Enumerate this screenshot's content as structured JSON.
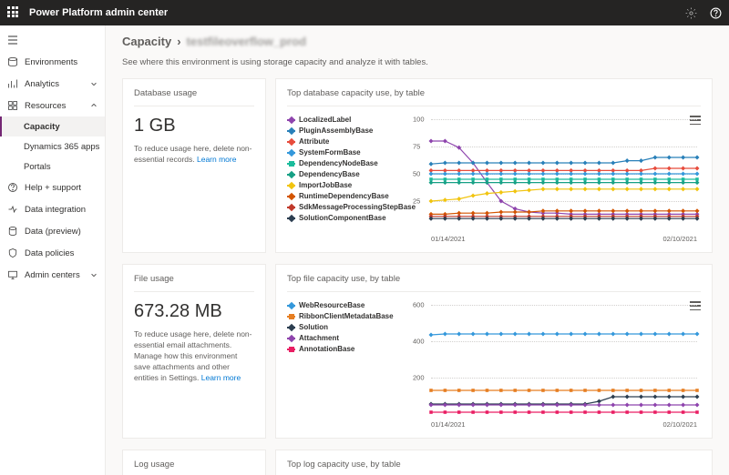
{
  "topbar": {
    "title": "Power Platform admin center"
  },
  "nav": {
    "environments": "Environments",
    "analytics": "Analytics",
    "resources": "Resources",
    "capacity": "Capacity",
    "d365": "Dynamics 365 apps",
    "portals": "Portals",
    "help": "Help + support",
    "dataint": "Data integration",
    "dataprev": "Data (preview)",
    "datapol": "Data policies",
    "admin": "Admin centers"
  },
  "breadcrumb": {
    "root": "Capacity",
    "env": "testfileoverflow_prod"
  },
  "description": "See where this environment is using storage capacity and analyze it with tables.",
  "learn_more": "Learn more",
  "db": {
    "title": "Database usage",
    "value": "1 GB",
    "hint": "To reduce usage here, delete non-essential records."
  },
  "db_chart": {
    "title": "Top database capacity use, by table",
    "ymax": 100,
    "yticks": [
      100,
      75,
      50,
      25
    ],
    "xlabels": [
      "01/14/2021",
      "02/10/2021"
    ],
    "series": [
      {
        "name": "LocalizedLabel",
        "color": "#8e44ad",
        "shape": "diamond",
        "data": [
          80,
          80,
          74,
          60,
          42,
          25,
          18,
          15,
          14,
          14,
          13,
          13,
          13,
          13,
          13,
          13,
          13,
          13,
          13,
          13
        ]
      },
      {
        "name": "PluginAssemblyBase",
        "color": "#2980b9",
        "shape": "diamond",
        "data": [
          59,
          60,
          60,
          60,
          60,
          60,
          60,
          60,
          60,
          60,
          60,
          60,
          60,
          60,
          62,
          62,
          65,
          65,
          65,
          65
        ]
      },
      {
        "name": "Attribute",
        "color": "#e74c3c",
        "shape": "diamond",
        "data": [
          53,
          53,
          53,
          53,
          53,
          53,
          53,
          53,
          53,
          53,
          53,
          53,
          53,
          53,
          53,
          53,
          55,
          55,
          55,
          55
        ]
      },
      {
        "name": "SystemFormBase",
        "color": "#3498db",
        "shape": "diamond",
        "data": [
          50,
          50,
          50,
          50,
          50,
          50,
          50,
          50,
          50,
          50,
          50,
          50,
          50,
          50,
          50,
          50,
          50,
          50,
          50,
          50
        ]
      },
      {
        "name": "DependencyNodeBase",
        "color": "#1abc9c",
        "shape": "square",
        "data": [
          45,
          45,
          45,
          45,
          45,
          45,
          45,
          45,
          45,
          45,
          45,
          45,
          45,
          45,
          45,
          45,
          45,
          45,
          45,
          45
        ]
      },
      {
        "name": "DependencyBase",
        "color": "#16a085",
        "shape": "diamond",
        "data": [
          42,
          42,
          42,
          42,
          42,
          42,
          42,
          42,
          42,
          42,
          42,
          42,
          42,
          42,
          42,
          42,
          42,
          42,
          42,
          42
        ]
      },
      {
        "name": "ImportJobBase",
        "color": "#f1c40f",
        "shape": "diamond",
        "data": [
          25,
          26,
          27,
          30,
          32,
          33,
          34,
          35,
          36,
          36,
          36,
          36,
          36,
          36,
          36,
          36,
          36,
          36,
          36,
          36
        ]
      },
      {
        "name": "RuntimeDependencyBase",
        "color": "#d35400",
        "shape": "diamond",
        "data": [
          13,
          13,
          14,
          14,
          14,
          15,
          15,
          15,
          16,
          16,
          16,
          16,
          16,
          16,
          16,
          16,
          16,
          16,
          16,
          16
        ]
      },
      {
        "name": "SdkMessageProcessingStepBase",
        "color": "#c0392b",
        "shape": "diamond",
        "data": [
          11,
          11,
          11,
          11,
          11,
          11,
          11,
          11,
          11,
          11,
          11,
          11,
          11,
          11,
          11,
          11,
          11,
          11,
          11,
          11
        ]
      },
      {
        "name": "SolutionComponentBase",
        "color": "#2c3e50",
        "shape": "diamond",
        "data": [
          9,
          9,
          9,
          9,
          9,
          9,
          9,
          9,
          9,
          9,
          9,
          9,
          9,
          9,
          9,
          9,
          9,
          9,
          9,
          9
        ]
      }
    ]
  },
  "file": {
    "title": "File usage",
    "value": "673.28 MB",
    "hint": "To reduce usage here, delete non-essential email attachments. Manage how this environment save attachments and other entities in Settings."
  },
  "file_chart": {
    "title": "Top file capacity use, by table",
    "ymax": 600,
    "yticks": [
      600,
      400,
      200
    ],
    "xlabels": [
      "01/14/2021",
      "02/10/2021"
    ],
    "series": [
      {
        "name": "WebResourceBase",
        "color": "#3498db",
        "shape": "diamond",
        "data": [
          435,
          440,
          440,
          440,
          440,
          440,
          440,
          440,
          440,
          440,
          440,
          440,
          440,
          440,
          440,
          440,
          440,
          440,
          440,
          440
        ]
      },
      {
        "name": "RibbonClientMetadataBase",
        "color": "#e67e22",
        "shape": "square",
        "data": [
          130,
          130,
          130,
          130,
          130,
          130,
          130,
          130,
          130,
          130,
          130,
          130,
          130,
          130,
          130,
          130,
          130,
          130,
          130,
          130
        ]
      },
      {
        "name": "Solution",
        "color": "#2c3e50",
        "shape": "diamond",
        "data": [
          55,
          55,
          55,
          55,
          55,
          55,
          55,
          55,
          55,
          55,
          55,
          55,
          70,
          95,
          95,
          95,
          95,
          95,
          95,
          95
        ]
      },
      {
        "name": "Attachment",
        "color": "#8e44ad",
        "shape": "diamond",
        "data": [
          50,
          50,
          50,
          50,
          50,
          50,
          50,
          50,
          50,
          50,
          50,
          50,
          50,
          50,
          50,
          50,
          50,
          50,
          50,
          50
        ]
      },
      {
        "name": "AnnotationBase",
        "color": "#e91e63",
        "shape": "square",
        "data": [
          10,
          10,
          10,
          10,
          10,
          10,
          10,
          10,
          10,
          10,
          10,
          10,
          10,
          10,
          10,
          10,
          10,
          10,
          10,
          10
        ]
      }
    ]
  },
  "log": {
    "title": "Log usage"
  },
  "log_chart": {
    "title": "Top log capacity use, by table"
  }
}
